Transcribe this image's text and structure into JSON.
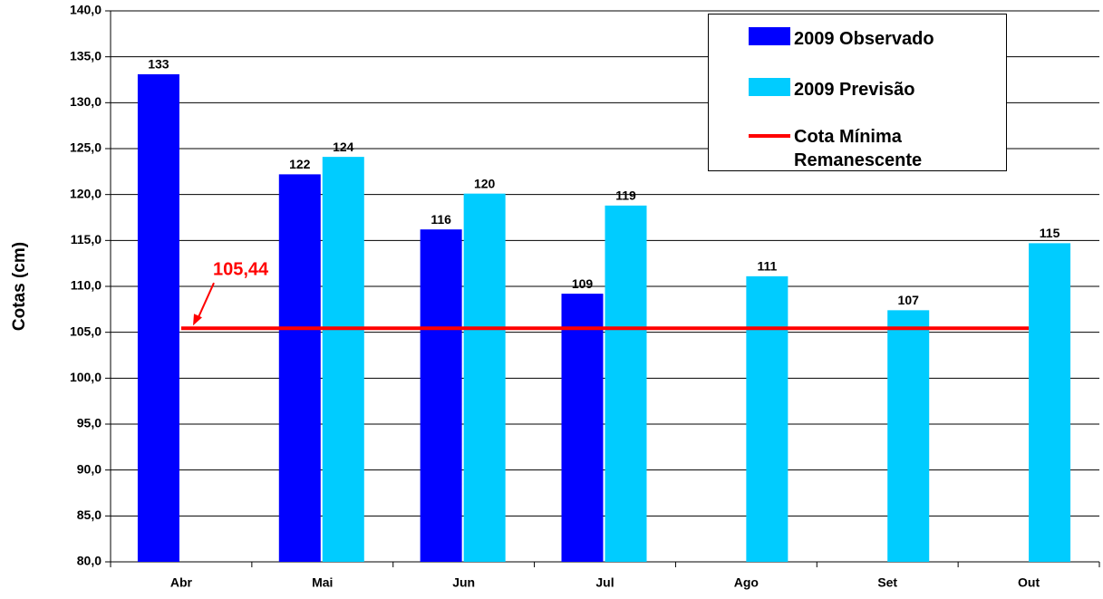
{
  "chart_data": {
    "type": "bar",
    "ylabel": "Cotas (cm)",
    "categories": [
      "Abr",
      "Mai",
      "Jun",
      "Jul",
      "Ago",
      "Set",
      "Out"
    ],
    "series": [
      {
        "name": "2009 Observado",
        "color": "#0000ff",
        "values": [
          133.1,
          122.2,
          116.2,
          109.2,
          null,
          null,
          null
        ],
        "value_labels": [
          "133",
          "122",
          "116",
          "109",
          null,
          null,
          null
        ]
      },
      {
        "name": "2009 Previsão",
        "color": "#00ccff",
        "values": [
          null,
          124.1,
          120.1,
          118.8,
          111.1,
          107.4,
          114.7
        ],
        "value_labels": [
          null,
          "124",
          "120",
          "119",
          "111",
          "107",
          "115"
        ]
      },
      {
        "name": "Cota Mínima Remanescente",
        "type": "line",
        "color": "#ff0000",
        "values": [
          105.44,
          105.44,
          105.44,
          105.44,
          105.44,
          105.44,
          105.44
        ]
      }
    ],
    "annotation": "105,44",
    "ylim": [
      80,
      140
    ],
    "yticks": [
      {
        "value": 80,
        "label": "80,0"
      },
      {
        "value": 85,
        "label": "85,0"
      },
      {
        "value": 90,
        "label": "90,0"
      },
      {
        "value": 95,
        "label": "95,0"
      },
      {
        "value": 100,
        "label": "100,0"
      },
      {
        "value": 105,
        "label": "105,0"
      },
      {
        "value": 110,
        "label": "110,0"
      },
      {
        "value": 115,
        "label": "115,0"
      },
      {
        "value": 120,
        "label": "120,0"
      },
      {
        "value": 125,
        "label": "125,0"
      },
      {
        "value": 130,
        "label": "130,0"
      },
      {
        "value": 135,
        "label": "135,0"
      },
      {
        "value": 140,
        "label": "140,0"
      }
    ],
    "grid": true
  }
}
